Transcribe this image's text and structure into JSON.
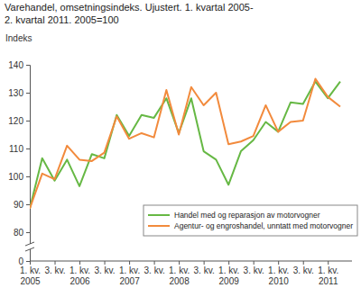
{
  "chart_data": {
    "type": "line",
    "title": "Varehandel, omsetningsindeks. Ujustert.  1. kvartal 2005-\n2. kvartal 2011. 2005=100",
    "y_label": "Indeks",
    "categories": [
      "1. kv.\n2005",
      null,
      "3. kv.",
      null,
      "1. kv.\n2006",
      null,
      "3. kv.",
      null,
      "1. kv.\n2007",
      null,
      "3. kv.",
      null,
      "1. kv.\n2008",
      null,
      "3. kv.",
      null,
      "1. kv.\n2009",
      null,
      "3. kv.",
      null,
      "1. kv.\n2010",
      null,
      "3. kv.",
      null,
      "1. kv.\n2011",
      null
    ],
    "series": [
      {
        "name": "Handel med og reparasjon av motorvogner",
        "color": "#66b844",
        "values": [
          88.5,
          106.5,
          98.5,
          106,
          96.5,
          108,
          106.5,
          122,
          114.5,
          122,
          121,
          128,
          115.5,
          128,
          109,
          106,
          97,
          109,
          113,
          119.5,
          116,
          126.5,
          126,
          134,
          128,
          134
        ]
      },
      {
        "name": "Agentur- og engroshandel, unntatt med motorvogner",
        "color": "#f28a3c",
        "values": [
          88.5,
          101,
          99,
          111,
          106,
          105.5,
          108.5,
          121.5,
          113.5,
          115.5,
          114,
          131,
          115,
          132,
          125.5,
          130,
          111.5,
          112.5,
          114.5,
          125.5,
          116,
          119.5,
          120,
          135,
          128.5,
          125
        ]
      }
    ],
    "ylim": [
      0,
      140
    ],
    "yticks": [
      0,
      80,
      90,
      100,
      110,
      120,
      130,
      140
    ],
    "grid": false,
    "legend": "lower right"
  }
}
